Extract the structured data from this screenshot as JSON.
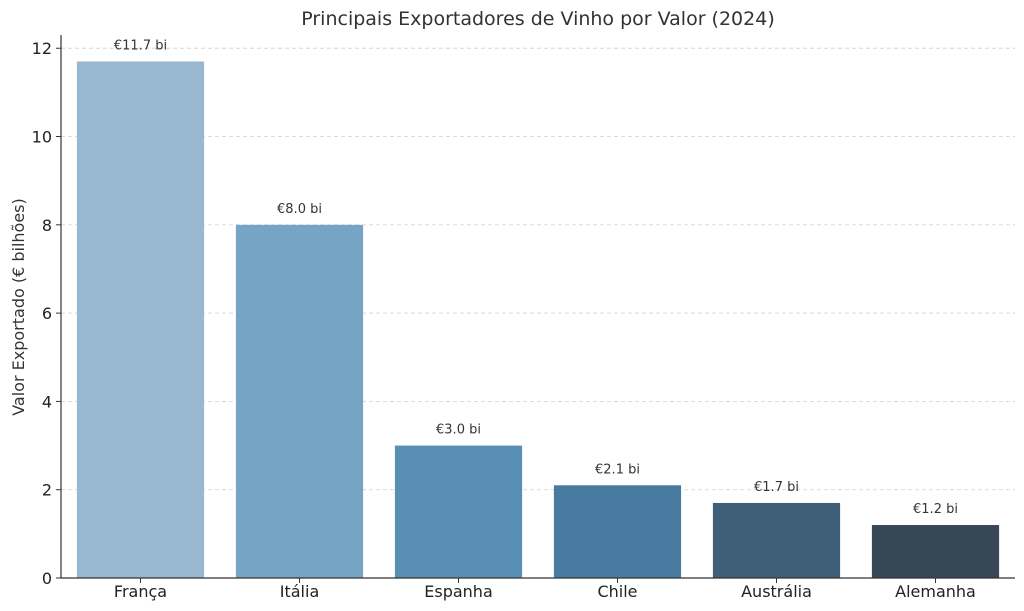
{
  "chart_data": {
    "type": "bar",
    "title": "Principais Exportadores de Vinho por Valor (2024)",
    "xlabel": "",
    "ylabel": "Valor Exportado (€ bilhões)",
    "categories": [
      "França",
      "Itália",
      "Espanha",
      "Chile",
      "Austrália",
      "Alemanha"
    ],
    "values": [
      11.7,
      8.0,
      3.0,
      2.1,
      1.7,
      1.2
    ],
    "data_labels": [
      "€11.7 bi",
      "€8.0 bi",
      "€3.0 bi",
      "€2.1 bi",
      "€1.7 bi",
      "€1.2 bi"
    ],
    "bar_colors": [
      "#97b8d0",
      "#75a4c4",
      "#5a8fb4",
      "#487b9f",
      "#3f5e78",
      "#374756"
    ],
    "ylim": [
      0,
      12.3
    ],
    "yticks": [
      0,
      2,
      4,
      6,
      8,
      10,
      12
    ],
    "grid": "y-dashed",
    "legend": "none"
  }
}
